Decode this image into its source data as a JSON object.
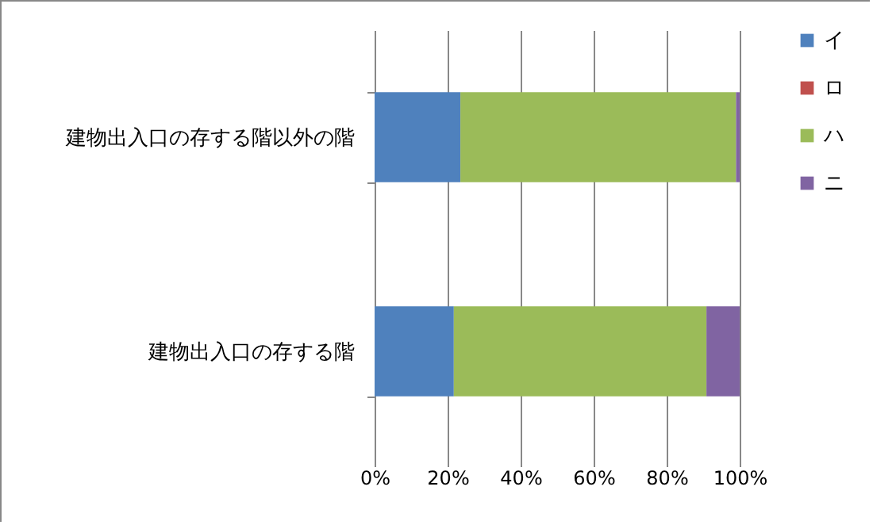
{
  "chart_data": {
    "type": "bar",
    "orientation": "horizontal",
    "stacked": true,
    "categories": [
      "建物出入口の存する階以外の階",
      "建物出入口の存する階"
    ],
    "series": [
      {
        "name": "イ",
        "color": "#4f81bd",
        "values": [
          23.5,
          21.7
        ]
      },
      {
        "name": "ロ",
        "color": "#c0504d",
        "values": [
          0,
          0
        ]
      },
      {
        "name": "ハ",
        "color": "#9bbb59",
        "values": [
          75.5,
          69.2
        ]
      },
      {
        "name": "ニ",
        "color": "#8064a2",
        "values": [
          1.0,
          9.1
        ]
      }
    ],
    "xlim": [
      0,
      100
    ],
    "xticks": [
      {
        "value": 0,
        "label": "0%"
      },
      {
        "value": 20,
        "label": "20%"
      },
      {
        "value": 40,
        "label": "40%"
      },
      {
        "value": 60,
        "label": "60%"
      },
      {
        "value": 80,
        "label": "80%"
      },
      {
        "value": 100,
        "label": "100%"
      }
    ],
    "grid": "x",
    "legend": "right"
  }
}
